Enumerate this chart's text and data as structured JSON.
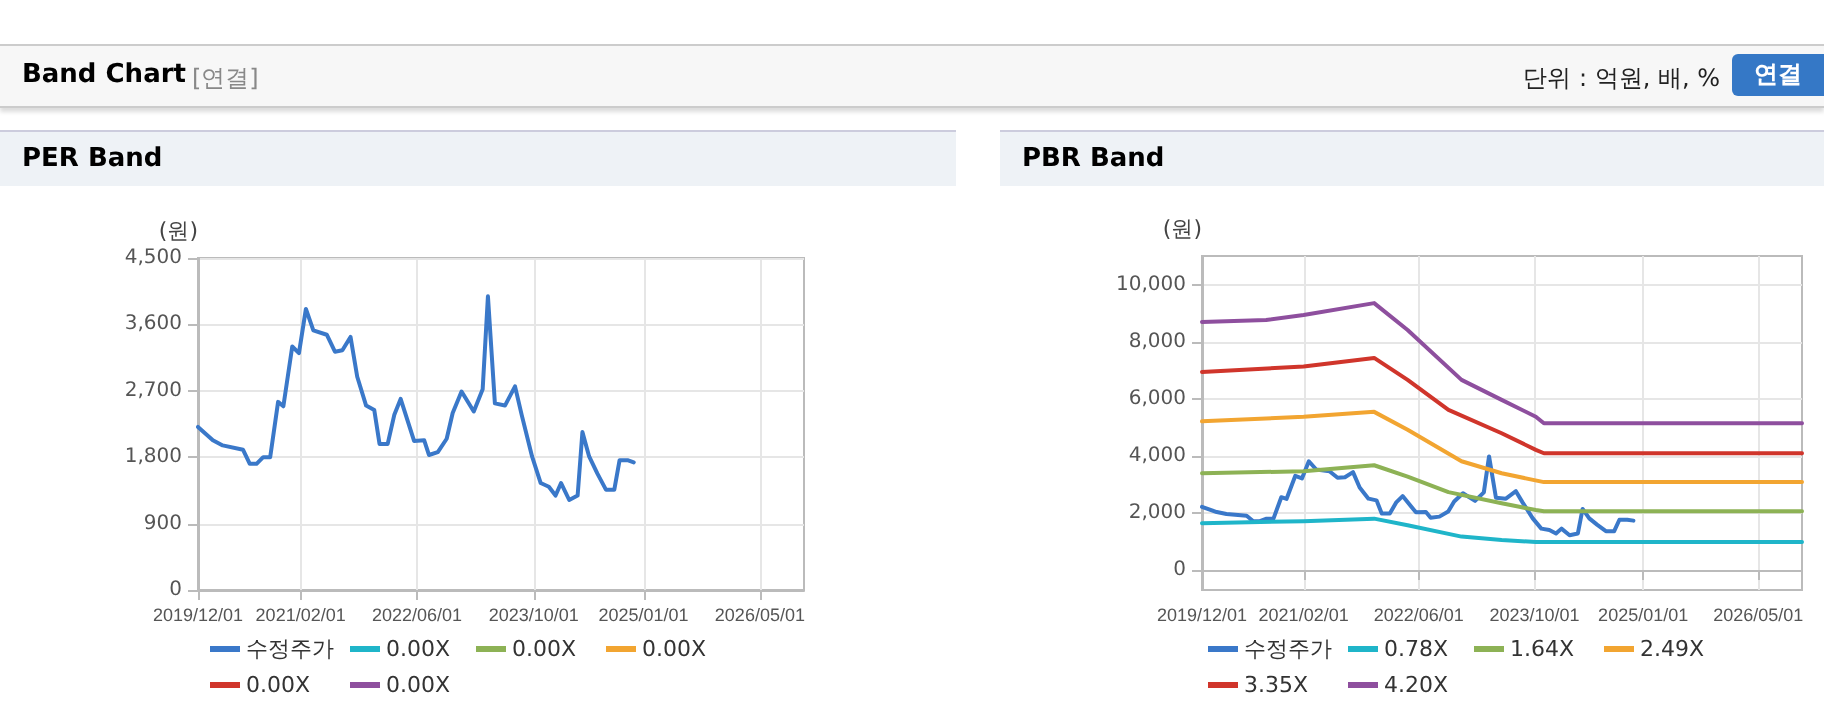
{
  "chart_data": [
    {
      "type": "other",
      "title": "Band Chart",
      "annotations": [
        "[연결]",
        "단위 : 억원, 배, %",
        "연결"
      ]
    },
    {
      "type": "line",
      "title": "PER Band",
      "ylabel": "(원)",
      "xlim": [
        "2019-12-01",
        "2026-11-01"
      ],
      "ylim": [
        0,
        4500
      ],
      "yticks": [
        {
          "value": 0,
          "label": "0"
        },
        {
          "value": 900,
          "label": "900"
        },
        {
          "value": 1800,
          "label": "1,800"
        },
        {
          "value": 2700,
          "label": "2,700"
        },
        {
          "value": 3600,
          "label": "3,600"
        },
        {
          "value": 4500,
          "label": "4,500"
        }
      ],
      "xticks": [
        {
          "value": "2019-12-01",
          "label": "2019/12/01"
        },
        {
          "value": "2021-02-01",
          "label": "2021/02/01"
        },
        {
          "value": "2022-06-01",
          "label": "2022/06/01"
        },
        {
          "value": "2023-10-01",
          "label": "2023/10/01"
        },
        {
          "value": "2025-01-01",
          "label": "2025/01/01"
        },
        {
          "value": "2026-05-01",
          "label": "2026/05/01"
        }
      ],
      "grid": true,
      "legend": "bottom",
      "marker": "none",
      "line_style": "solid",
      "series": [
        {
          "name": "수정주가",
          "color": "#3a78c9",
          "x": [
            "2019-12-01",
            "2020-02-01",
            "2020-03-13",
            "2020-06-06",
            "2020-07-04",
            "2020-08-01",
            "2020-08-29",
            "2020-09-27",
            "2020-10-30",
            "2020-11-21",
            "2020-12-28",
            "2021-01-25",
            "2021-02-23",
            "2021-03-26",
            "2021-05-21",
            "2021-06-24",
            "2021-07-25",
            "2021-08-28",
            "2021-09-25",
            "2021-11-01",
            "2021-12-05",
            "2021-12-27",
            "2022-01-30",
            "2022-02-27",
            "2022-03-25",
            "2022-05-20",
            "2022-07-01",
            "2022-07-21",
            "2022-08-27",
            "2022-10-03",
            "2022-10-28",
            "2022-12-04",
            "2023-01-24",
            "2023-03-02",
            "2023-03-24",
            "2023-04-22",
            "2023-06-03",
            "2023-07-15",
            "2023-08-12",
            "2023-09-24",
            "2023-10-30",
            "2023-12-03",
            "2023-12-31",
            "2024-01-23",
            "2024-02-26",
            "2024-04-01",
            "2024-04-21",
            "2024-05-19",
            "2024-06-22",
            "2024-07-28",
            "2024-09-01",
            "2024-09-23",
            "2024-10-26",
            "2024-11-21"
          ],
          "values": [
            2210,
            2030,
            1960,
            1900,
            1710,
            1710,
            1800,
            1800,
            2550,
            2490,
            3300,
            3210,
            3810,
            3520,
            3460,
            3230,
            3250,
            3430,
            2890,
            2500,
            2440,
            1980,
            1980,
            2380,
            2590,
            2020,
            2030,
            1830,
            1870,
            2050,
            2400,
            2690,
            2420,
            2720,
            3980,
            2530,
            2500,
            2760,
            2370,
            1810,
            1450,
            1400,
            1280,
            1450,
            1220,
            1280,
            2140,
            1810,
            1580,
            1360,
            1360,
            1760,
            1760,
            1730
          ]
        },
        {
          "name": "0.00X",
          "color": "#1fb5c9"
        },
        {
          "name": "0.00X",
          "color": "#8db255"
        },
        {
          "name": "0.00X",
          "color": "#f2a531"
        },
        {
          "name": "0.00X",
          "color": "#d0352b"
        },
        {
          "name": "0.00X",
          "color": "#8e4f9e"
        }
      ]
    },
    {
      "type": "line",
      "title": "PBR Band",
      "ylabel": "(원)",
      "xlim": [
        "2019-12-01",
        "2026-11-01"
      ],
      "ylim": [
        -700,
        11000
      ],
      "yticks": [
        {
          "value": 0,
          "label": "0"
        },
        {
          "value": 2000,
          "label": "2,000"
        },
        {
          "value": 4000,
          "label": "4,000"
        },
        {
          "value": 6000,
          "label": "6,000"
        },
        {
          "value": 8000,
          "label": "8,000"
        },
        {
          "value": 10000,
          "label": "10,000"
        }
      ],
      "xticks": [
        {
          "value": "2019-12-01",
          "label": "2019/12/01"
        },
        {
          "value": "2021-02-01",
          "label": "2021/02/01"
        },
        {
          "value": "2022-06-01",
          "label": "2022/06/01"
        },
        {
          "value": "2023-10-01",
          "label": "2023/10/01"
        },
        {
          "value": "2025-01-01",
          "label": "2025/01/01"
        },
        {
          "value": "2026-05-01",
          "label": "2026/05/01"
        }
      ],
      "grid": true,
      "legend": "bottom",
      "marker": "none",
      "line_style": "solid",
      "series": [
        {
          "name": "수정주가",
          "color": "#3a78c9",
          "x": [
            "2019-12-01",
            "2020-02-01",
            "2020-03-13",
            "2020-06-06",
            "2020-07-04",
            "2020-08-01",
            "2020-08-29",
            "2020-09-27",
            "2020-10-30",
            "2020-11-21",
            "2020-12-28",
            "2021-01-25",
            "2021-02-23",
            "2021-03-26",
            "2021-05-21",
            "2021-06-24",
            "2021-07-25",
            "2021-08-28",
            "2021-09-25",
            "2021-11-01",
            "2021-12-05",
            "2021-12-27",
            "2022-01-30",
            "2022-02-27",
            "2022-03-25",
            "2022-05-20",
            "2022-07-01",
            "2022-07-21",
            "2022-08-27",
            "2022-10-03",
            "2022-10-28",
            "2022-12-04",
            "2023-01-24",
            "2023-03-02",
            "2023-03-24",
            "2023-04-22",
            "2023-06-03",
            "2023-07-15",
            "2023-08-12",
            "2023-09-24",
            "2023-10-30",
            "2023-12-03",
            "2023-12-31",
            "2024-01-23",
            "2024-02-26",
            "2024-04-01",
            "2024-04-21",
            "2024-05-19",
            "2024-06-22",
            "2024-07-28",
            "2024-09-01",
            "2024-09-23",
            "2024-10-26",
            "2024-11-21"
          ],
          "values": [
            2210,
            2030,
            1960,
            1900,
            1710,
            1710,
            1800,
            1800,
            2550,
            2490,
            3300,
            3210,
            3810,
            3520,
            3460,
            3230,
            3250,
            3430,
            2890,
            2500,
            2440,
            1980,
            1980,
            2380,
            2590,
            2020,
            2030,
            1830,
            1870,
            2050,
            2400,
            2690,
            2420,
            2720,
            3980,
            2530,
            2500,
            2760,
            2370,
            1810,
            1450,
            1400,
            1280,
            1450,
            1220,
            1280,
            2140,
            1810,
            1580,
            1360,
            1360,
            1760,
            1760,
            1730
          ]
        },
        {
          "name": "0.78X",
          "color": "#1fb5c9",
          "x": [
            "2019-12-01",
            "2021-02-01",
            "2021-11-25",
            "2022-04-15",
            "2022-11-28",
            "2023-05-16",
            "2023-10-07",
            "2026-11-01"
          ],
          "values": [
            1640,
            1710,
            1800,
            1570,
            1170,
            1050,
            980,
            980
          ]
        },
        {
          "name": "1.64X",
          "color": "#8db255",
          "x": [
            "2019-12-01",
            "2021-02-01",
            "2021-11-25",
            "2022-04-15",
            "2022-10-04",
            "2023-05-16",
            "2023-10-07",
            "2023-11-10",
            "2026-11-01"
          ],
          "values": [
            3390,
            3460,
            3670,
            3270,
            2730,
            2340,
            2100,
            2060,
            2060
          ]
        },
        {
          "name": "2.49X",
          "color": "#f2a531",
          "x": [
            "2019-12-01",
            "2021-02-01",
            "2021-11-25",
            "2022-04-15",
            "2022-11-28",
            "2023-05-16",
            "2023-11-10",
            "2026-11-01"
          ],
          "values": [
            5210,
            5370,
            5540,
            4910,
            3810,
            3390,
            3080,
            3080
          ]
        },
        {
          "name": "3.35X",
          "color": "#d0352b",
          "x": [
            "2019-12-01",
            "2021-02-01",
            "2021-11-25",
            "2022-04-15",
            "2022-10-04",
            "2023-05-16",
            "2023-10-07",
            "2023-11-10",
            "2026-11-01"
          ],
          "values": [
            6940,
            7130,
            7430,
            6660,
            5610,
            4790,
            4210,
            4090,
            4090
          ]
        },
        {
          "name": "4.20X",
          "color": "#8e4f9e",
          "x": [
            "2019-12-01",
            "2020-08-27",
            "2021-02-01",
            "2021-11-25",
            "2022-04-15",
            "2022-11-28",
            "2023-05-16",
            "2023-10-07",
            "2023-11-10",
            "2026-11-01"
          ],
          "values": [
            8690,
            8760,
            8930,
            9350,
            8410,
            6660,
            5960,
            5370,
            5140,
            5140
          ]
        }
      ]
    }
  ]
}
